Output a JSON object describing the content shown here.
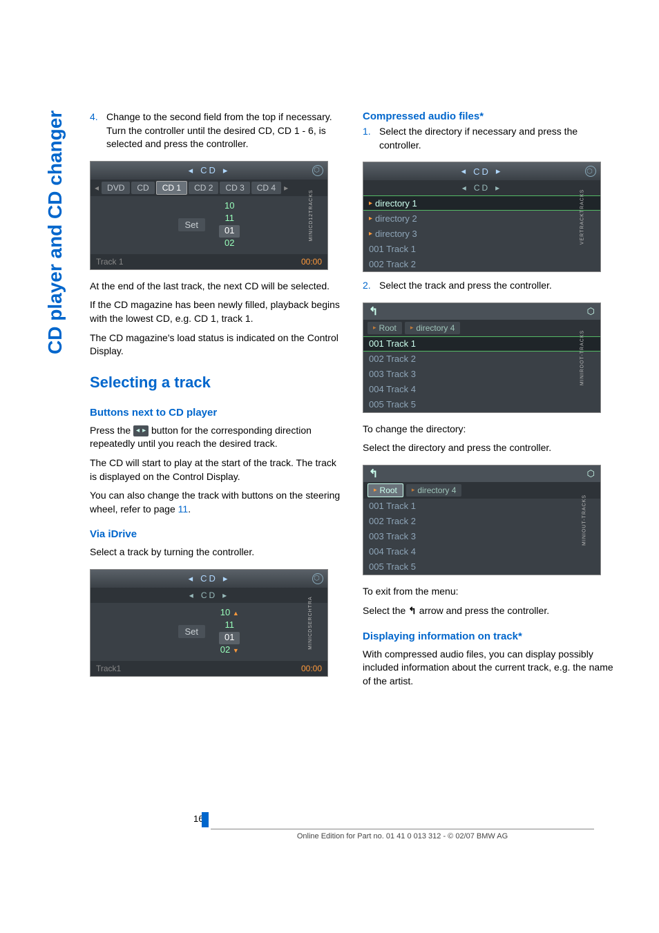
{
  "side_tab": "CD player and CD changer",
  "left": {
    "step4_num": "4.",
    "step4_text": "Change to the second field from the top if necessary. Turn the controller until the desired CD, CD 1 - 6, is selected and press the controller.",
    "shot1": {
      "top_label": "CD",
      "tabs": [
        "DVD",
        "CD",
        "CD 1",
        "CD 2",
        "CD 3",
        "CD 4"
      ],
      "nums": [
        "10",
        "11",
        "01",
        "02"
      ],
      "set_label": "Set",
      "foot_left": "Track 1",
      "foot_right": "00:00",
      "sidecode": "MINICD12TRACKS"
    },
    "para1": "At the end of the last track, the next CD will be selected.",
    "para2": "If the CD magazine has been newly filled, playback begins with the lowest CD, e.g. CD 1, track 1.",
    "para3": "The CD magazine's load status is indicated on the Control Display.",
    "h2": "Selecting a track",
    "h3a": "Buttons next to CD player",
    "btn_para_a": "Press the ",
    "btn_para_b": " button for the corresponding direction repeatedly until you reach the desired track.",
    "btn_para2": "The CD will start to play at the start of the track. The track is displayed on the Control Display.",
    "btn_para3a": "You can also change the track with buttons on the steering wheel, refer to page ",
    "btn_para3_page": "11",
    "btn_para3b": ".",
    "h3b": "Via iDrive",
    "idrive_para": "Select a track by turning the controller.",
    "shot2": {
      "top_label": "CD",
      "sub_label": "CD",
      "nums": [
        "10",
        "11",
        "01",
        "02"
      ],
      "set_label": "Set",
      "foot_left": "Track1",
      "foot_right": "00:00",
      "sidecode": "MINICDSERCHTRA"
    }
  },
  "right": {
    "h3a": "Compressed audio files*",
    "step1_num": "1.",
    "step1_text": "Select the directory if necessary and press the controller.",
    "shot3": {
      "top_label": "CD",
      "sub_label": "CD",
      "rows": [
        "directory 1",
        "directory 2",
        "directory 3",
        "001 Track 1",
        "002 Track 2"
      ],
      "hl_index": 0,
      "sidecode": "VERTRACKTRACKS"
    },
    "step2_num": "2.",
    "step2_text": "Select the track and press the controller.",
    "shot4": {
      "crumbs": [
        "Root",
        "directory 4"
      ],
      "rows": [
        "001 Track 1",
        "002 Track 2",
        "003 Track 3",
        "004 Track 4",
        "005 Track 5"
      ],
      "hl_index": 0,
      "sidecode": "MINIROOT-TRACKS"
    },
    "change_dir1": "To change the directory:",
    "change_dir2": "Select the directory and press the controller.",
    "shot5": {
      "crumbs": [
        "Root",
        "directory 4"
      ],
      "crumb_sel": 0,
      "rows": [
        "001 Track 1",
        "002 Track 2",
        "003 Track 3",
        "004 Track 4",
        "005 Track 5"
      ],
      "sidecode": "MINIOUT-TRACKS"
    },
    "exit1": "To exit from the menu:",
    "exit2a": "Select the ",
    "exit2b": " arrow and press the controller.",
    "h3b": "Displaying information on track*",
    "disp_para": "With compressed audio files, you can display possibly included information about the current track, e.g. the name of the artist."
  },
  "page_number": "166",
  "footer": "Online Edition for Part no. 01 41 0 013 312 - © 02/07 BMW AG",
  "colors": {
    "accent": "#0066cc",
    "shot_bg": "#3a4046",
    "orange": "#ff9a3c"
  }
}
